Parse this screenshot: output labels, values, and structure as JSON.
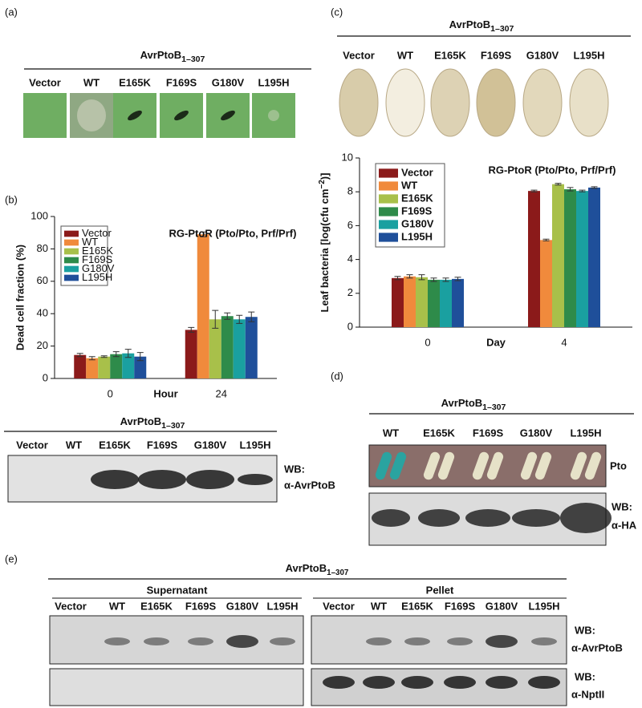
{
  "panel_a": {
    "label": "(a)",
    "title": {
      "main": "AvrPtoB",
      "sub": "1–307"
    },
    "lanes": [
      "Vector",
      "WT",
      "E165K",
      "F169S",
      "G180V",
      "L195H"
    ]
  },
  "chart_data": [
    {
      "type": "bar",
      "panel_label": "(b)",
      "ylabel": "Dead cell fraction (%)",
      "xlabel": "Hour",
      "annotation": "RG-PtoR (Pto/Pto, Prf/Prf)",
      "categories": [
        "0",
        "24"
      ],
      "series": [
        {
          "name": "Vector",
          "color": "#8b1a1a",
          "values": [
            14.5,
            30
          ],
          "errors": [
            1,
            1.5
          ]
        },
        {
          "name": "WT",
          "color": "#f08a3c",
          "values": [
            12.5,
            89
          ],
          "errors": [
            1,
            1.5
          ]
        },
        {
          "name": "E165K",
          "color": "#a8c04a",
          "values": [
            13.5,
            36.5
          ],
          "errors": [
            0.5,
            5.5
          ]
        },
        {
          "name": "F169S",
          "color": "#2e8b4a",
          "values": [
            15,
            38.5
          ],
          "errors": [
            1.5,
            2
          ]
        },
        {
          "name": "G180V",
          "color": "#1aa0a0",
          "values": [
            15.5,
            36.5
          ],
          "errors": [
            2.5,
            2.5
          ]
        },
        {
          "name": "L195H",
          "color": "#1f4f9a",
          "values": [
            13.5,
            38
          ],
          "errors": [
            2.5,
            3
          ]
        }
      ],
      "ylim": [
        0,
        100
      ],
      "yticks": [
        0,
        20,
        40,
        60,
        80,
        100
      ],
      "legend": "upper left"
    },
    {
      "type": "bar",
      "panel_label": "(c)",
      "ylabel": {
        "main": "Leaf bacteria [log(cfu cm",
        "sup": "−2",
        "tail": ")]"
      },
      "xlabel": "Day",
      "annotation": "RG-PtoR (Pto/Pto, Prf/Prf)",
      "categories": [
        "0",
        "4"
      ],
      "series": [
        {
          "name": "Vector",
          "color": "#8b1a1a",
          "values": [
            2.9,
            8.05
          ],
          "errors": [
            0.1,
            0.05
          ]
        },
        {
          "name": "WT",
          "color": "#f08a3c",
          "values": [
            3.0,
            5.15
          ],
          "errors": [
            0.1,
            0.05
          ]
        },
        {
          "name": "E165K",
          "color": "#a8c04a",
          "values": [
            2.95,
            8.45
          ],
          "errors": [
            0.15,
            0.05
          ]
        },
        {
          "name": "F169S",
          "color": "#2e8b4a",
          "values": [
            2.8,
            8.15
          ],
          "errors": [
            0.1,
            0.1
          ]
        },
        {
          "name": "G180V",
          "color": "#1aa0a0",
          "values": [
            2.8,
            8.05
          ],
          "errors": [
            0.1,
            0.05
          ]
        },
        {
          "name": "L195H",
          "color": "#1f4f9a",
          "values": [
            2.85,
            8.25
          ],
          "errors": [
            0.1,
            0.05
          ]
        }
      ],
      "ylim": [
        0,
        10
      ],
      "yticks": [
        0,
        2,
        4,
        6,
        8,
        10
      ],
      "legend": "upper left"
    }
  ],
  "blot_b": {
    "title": {
      "main": "AvrPtoB",
      "sub": "1–307"
    },
    "lanes": [
      "Vector",
      "WT",
      "E165K",
      "F169S",
      "G180V",
      "L195H"
    ],
    "wb": [
      "WB:",
      "α-AvrPtoB"
    ]
  },
  "panel_c": {
    "title": {
      "main": "AvrPtoB",
      "sub": "1–307"
    },
    "lanes": [
      "Vector",
      "WT",
      "E165K",
      "F169S",
      "G180V",
      "L195H"
    ]
  },
  "panel_d": {
    "label": "(d)",
    "title": {
      "main": "AvrPtoB",
      "sub": "1–307"
    },
    "lanes": [
      "WT",
      "E165K",
      "F169S",
      "G180V",
      "L195H"
    ],
    "row_label": "Pto",
    "wb": [
      "WB:",
      "α-HA"
    ]
  },
  "panel_e": {
    "label": "(e)",
    "title": {
      "main": "AvrPtoB",
      "sub": "1–307"
    },
    "groups": [
      {
        "name": "Supernatant",
        "lanes": [
          "Vector",
          "WT",
          "E165K",
          "F169S",
          "G180V",
          "L195H"
        ]
      },
      {
        "name": "Pellet",
        "lanes": [
          "Vector",
          "WT",
          "E165K",
          "F169S",
          "G180V",
          "L195H"
        ]
      }
    ],
    "wb": [
      [
        "WB:",
        "α-AvrPtoB"
      ],
      [
        "WB:",
        "α-NptII"
      ]
    ]
  }
}
